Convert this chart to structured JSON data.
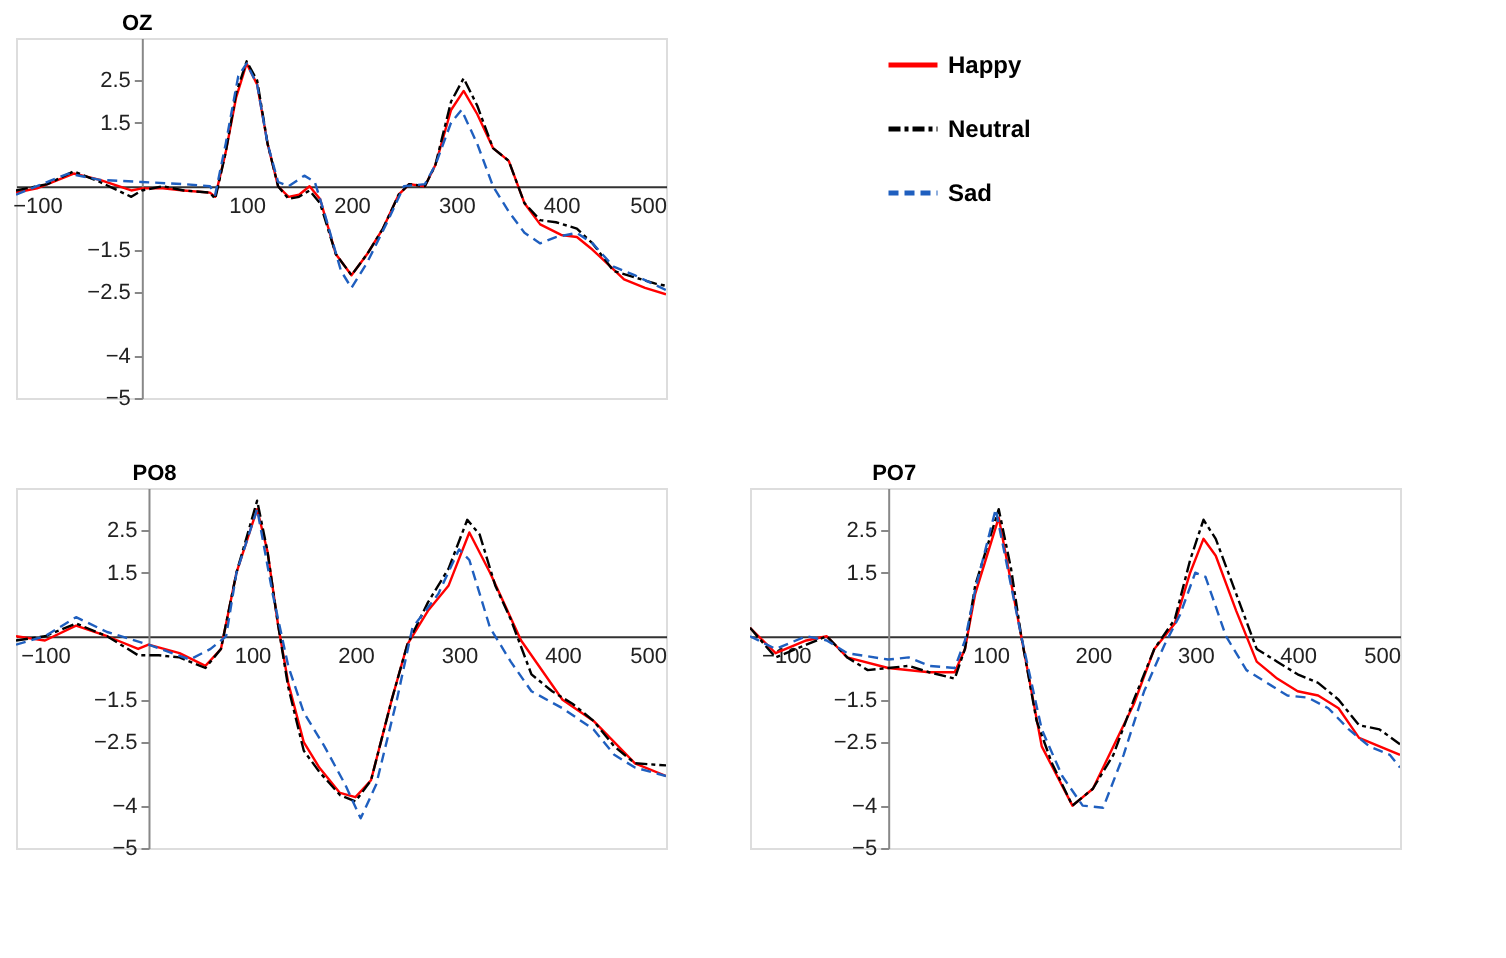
{
  "chart_data": [
    {
      "type": "line",
      "title": "OZ",
      "xlim": [
        -120,
        500
      ],
      "xticks": [
        -100,
        100,
        200,
        300,
        400,
        500
      ],
      "ylim": [
        -5,
        3.5
      ],
      "yticks": [
        2.5,
        1.5,
        -1.5,
        -2.5,
        -4,
        -5
      ],
      "legend": "right",
      "series": [
        {
          "name": "Happy",
          "color": "#ff0000",
          "line_style": "solid",
          "x": [
            -120,
            -100,
            -65,
            -40,
            -10,
            0,
            20,
            40,
            65,
            70,
            80,
            90,
            100,
            110,
            120,
            130,
            140,
            150,
            160,
            170,
            185,
            200,
            215,
            230,
            245,
            255,
            270,
            280,
            295,
            307,
            320,
            335,
            350,
            365,
            380,
            400,
            415,
            430,
            460,
            480,
            500
          ],
          "values": [
            -0.15,
            -0.05,
            0.3,
            0.15,
            -0.1,
            -0.05,
            -0.05,
            -0.1,
            -0.15,
            -0.25,
            0.8,
            2.1,
            2.9,
            2.4,
            1.0,
            0.0,
            -0.25,
            -0.2,
            0.0,
            -0.3,
            -1.6,
            -2.1,
            -1.6,
            -1.0,
            -0.2,
            0.05,
            0.0,
            0.5,
            1.8,
            2.25,
            1.7,
            0.9,
            0.6,
            -0.4,
            -0.9,
            -1.15,
            -1.2,
            -1.5,
            -2.2,
            -2.4,
            -2.55
          ]
        },
        {
          "name": "Neutral",
          "color": "#000000",
          "line_style": "dotted",
          "x": [
            -120,
            -90,
            -65,
            -40,
            -10,
            0,
            20,
            40,
            65,
            70,
            80,
            90,
            100,
            110,
            120,
            130,
            140,
            150,
            160,
            170,
            185,
            200,
            215,
            230,
            245,
            255,
            270,
            280,
            295,
            307,
            320,
            335,
            350,
            365,
            380,
            395,
            415,
            430,
            450,
            470,
            490,
            500
          ],
          "values": [
            -0.1,
            0.05,
            0.35,
            0.1,
            -0.25,
            -0.1,
            0.0,
            -0.1,
            -0.15,
            -0.3,
            0.8,
            2.2,
            2.95,
            2.5,
            1.0,
            0.0,
            -0.3,
            -0.25,
            -0.1,
            -0.4,
            -1.6,
            -2.1,
            -1.6,
            -1.0,
            -0.2,
            0.05,
            0.0,
            0.5,
            2.0,
            2.55,
            1.9,
            0.9,
            0.6,
            -0.4,
            -0.8,
            -0.85,
            -1.0,
            -1.35,
            -2.0,
            -2.15,
            -2.3,
            -2.35
          ]
        },
        {
          "name": "Sad",
          "color": "#1f5fbf",
          "line_style": "dashed",
          "x": [
            -120,
            -70,
            -40,
            0,
            40,
            65,
            70,
            80,
            92,
            100,
            110,
            120,
            130,
            140,
            155,
            165,
            175,
            190,
            200,
            215,
            235,
            250,
            270,
            280,
            295,
            305,
            320,
            335,
            350,
            365,
            380,
            395,
            415,
            430,
            450,
            470,
            500
          ],
          "values": [
            -0.2,
            0.3,
            0.15,
            0.1,
            0.05,
            0.0,
            -0.2,
            1.0,
            2.6,
            2.9,
            2.4,
            1.0,
            0.1,
            0.0,
            0.25,
            0.1,
            -0.7,
            -2.0,
            -2.4,
            -1.8,
            -0.8,
            0.0,
            0.05,
            0.5,
            1.5,
            1.8,
            1.0,
            0.0,
            -0.6,
            -1.1,
            -1.35,
            -1.2,
            -1.1,
            -1.35,
            -1.9,
            -2.1,
            -2.45
          ]
        }
      ]
    },
    {
      "type": "line",
      "title": "PO8",
      "xlim": [
        -128,
        500
      ],
      "xticks": [
        -100,
        100,
        200,
        300,
        400,
        500
      ],
      "ylim": [
        -5,
        3.5
      ],
      "yticks": [
        2.5,
        1.5,
        -1.5,
        -2.5,
        -4,
        -5
      ],
      "series": [
        {
          "color": "#ff0000",
          "line_style": "solid",
          "x": [
            -128,
            -100,
            -70,
            -40,
            -10,
            0,
            30,
            55,
            70,
            85,
            105,
            115,
            125,
            135,
            150,
            165,
            185,
            200,
            215,
            235,
            250,
            270,
            290,
            310,
            330,
            360,
            400,
            430,
            470,
            500
          ],
          "values": [
            0.0,
            -0.1,
            0.25,
            0.0,
            -0.3,
            -0.2,
            -0.4,
            -0.7,
            -0.3,
            1.5,
            3.0,
            2.0,
            0.3,
            -1.1,
            -2.5,
            -3.1,
            -3.7,
            -3.8,
            -3.4,
            -1.5,
            -0.2,
            0.6,
            1.2,
            2.45,
            1.5,
            -0.1,
            -1.5,
            -2.0,
            -3.0,
            -3.3
          ]
        },
        {
          "color": "#000000",
          "line_style": "dotted",
          "x": [
            -128,
            -100,
            -70,
            -40,
            -10,
            10,
            30,
            55,
            70,
            85,
            105,
            115,
            125,
            135,
            150,
            165,
            185,
            200,
            215,
            235,
            250,
            270,
            290,
            308,
            320,
            335,
            350,
            370,
            390,
            410,
            430,
            450,
            470,
            500
          ],
          "values": [
            -0.1,
            0.0,
            0.3,
            0.0,
            -0.45,
            -0.45,
            -0.5,
            -0.75,
            -0.3,
            1.5,
            3.2,
            2.0,
            0.3,
            -1.2,
            -2.7,
            -3.2,
            -3.75,
            -3.9,
            -3.4,
            -1.5,
            -0.2,
            0.8,
            1.6,
            2.75,
            2.4,
            1.2,
            0.4,
            -0.9,
            -1.3,
            -1.6,
            -2.0,
            -2.6,
            -3.0,
            -3.05
          ]
        },
        {
          "color": "#1f5fbf",
          "line_style": "dashed",
          "x": [
            -128,
            -100,
            -70,
            -40,
            0,
            40,
            60,
            75,
            85,
            105,
            120,
            135,
            150,
            170,
            190,
            205,
            220,
            240,
            255,
            280,
            300,
            310,
            330,
            350,
            370,
            400,
            430,
            450,
            470,
            500
          ],
          "values": [
            -0.2,
            0.0,
            0.45,
            0.1,
            -0.2,
            -0.55,
            -0.3,
            0.0,
            1.5,
            3.0,
            1.0,
            -0.7,
            -1.8,
            -2.6,
            -3.5,
            -4.3,
            -3.5,
            -1.5,
            0.2,
            1.0,
            2.05,
            1.8,
            0.2,
            -0.6,
            -1.3,
            -1.7,
            -2.2,
            -2.8,
            -3.1,
            -3.3
          ]
        }
      ]
    },
    {
      "type": "line",
      "title": "PO7",
      "xlim": [
        -135,
        500
      ],
      "xticks": [
        -100,
        100,
        200,
        300,
        400,
        500
      ],
      "ylim": [
        -5,
        3.5
      ],
      "yticks": [
        2.5,
        1.5,
        -1.5,
        -2.5,
        -4,
        -5
      ],
      "series": [
        {
          "color": "#ff0000",
          "line_style": "solid",
          "x": [
            -135,
            -110,
            -80,
            -60,
            -40,
            0,
            40,
            65,
            75,
            85,
            108,
            130,
            150,
            180,
            200,
            240,
            260,
            280,
            295,
            308,
            320,
            340,
            360,
            380,
            400,
            420,
            440,
            460,
            480,
            500
          ],
          "values": [
            0.2,
            -0.4,
            -0.1,
            0.0,
            -0.5,
            -0.75,
            -0.85,
            -0.85,
            -0.3,
            1.0,
            2.8,
            0.0,
            -2.6,
            -4.0,
            -3.6,
            -1.6,
            -0.3,
            0.3,
            1.5,
            2.3,
            1.9,
            0.6,
            -0.6,
            -1.0,
            -1.3,
            -1.4,
            -1.7,
            -2.4,
            -2.6,
            -2.8
          ]
        },
        {
          "color": "#000000",
          "line_style": "dotted",
          "x": [
            -135,
            -110,
            -80,
            -60,
            -40,
            -20,
            0,
            20,
            40,
            65,
            75,
            85,
            108,
            120,
            130,
            145,
            160,
            180,
            200,
            220,
            240,
            260,
            280,
            295,
            308,
            320,
            340,
            360,
            380,
            400,
            420,
            440,
            460,
            480,
            500
          ],
          "values": [
            0.2,
            -0.5,
            -0.2,
            0.0,
            -0.5,
            -0.8,
            -0.75,
            -0.7,
            -0.85,
            -1.0,
            -0.3,
            1.2,
            3.0,
            1.6,
            0.0,
            -2.0,
            -3.0,
            -4.0,
            -3.6,
            -2.8,
            -1.5,
            -0.3,
            0.4,
            1.8,
            2.75,
            2.3,
            1.0,
            -0.3,
            -0.6,
            -0.9,
            -1.1,
            -1.5,
            -2.1,
            -2.2,
            -2.55
          ]
        },
        {
          "color": "#1f5fbf",
          "line_style": "dashed",
          "x": [
            -135,
            -110,
            -80,
            -60,
            -40,
            0,
            20,
            40,
            65,
            75,
            85,
            105,
            130,
            150,
            170,
            190,
            210,
            230,
            250,
            270,
            285,
            300,
            310,
            330,
            350,
            370,
            390,
            410,
            430,
            450,
            470,
            490,
            500
          ],
          "values": [
            0.0,
            -0.3,
            0.0,
            -0.1,
            -0.4,
            -0.55,
            -0.5,
            -0.7,
            -0.75,
            -0.1,
            1.1,
            3.0,
            0.0,
            -2.2,
            -3.3,
            -4.0,
            -4.05,
            -2.8,
            -1.3,
            -0.2,
            0.5,
            1.5,
            1.4,
            0.0,
            -0.8,
            -1.1,
            -1.4,
            -1.45,
            -1.7,
            -2.2,
            -2.6,
            -2.8,
            -3.1
          ]
        }
      ]
    }
  ]
}
